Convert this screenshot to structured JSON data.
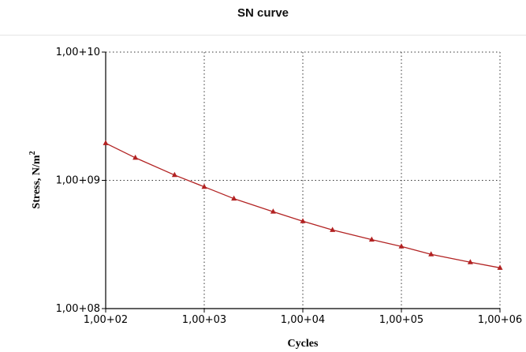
{
  "chart_data": {
    "type": "line",
    "title": "SN curve",
    "xlabel": "Cycles",
    "ylabel": "Stress, N/m",
    "ylabel_superscript": "2",
    "x_scale": "log",
    "y_scale": "log",
    "xlim": [
      100,
      1000000
    ],
    "ylim": [
      100000000,
      10000000000
    ],
    "x_ticks": [
      {
        "value": 100,
        "label": "1,00+02"
      },
      {
        "value": 1000,
        "label": "1,00+03"
      },
      {
        "value": 10000,
        "label": "1,00+04"
      },
      {
        "value": 100000,
        "label": "1,00+05"
      },
      {
        "value": 1000000,
        "label": "1,00+06"
      }
    ],
    "y_ticks": [
      {
        "value": 100000000,
        "label": "1,00+08"
      },
      {
        "value": 1000000000,
        "label": "1,00+09"
      },
      {
        "value": 10000000000,
        "label": "1,00+10"
      }
    ],
    "grid": true,
    "grid_style": "dotted",
    "marker": "triangle",
    "series_color": "#b22222",
    "series": [
      {
        "x": [
          100,
          200,
          500,
          1000,
          2000,
          5000,
          10000,
          20000,
          50000,
          100000,
          200000,
          500000,
          1000000
        ],
        "y": [
          1950000000,
          1500000000,
          1100000000,
          890000000,
          720000000,
          570000000,
          480000000,
          410000000,
          345000000,
          305000000,
          265000000,
          230000000,
          208000000
        ]
      }
    ]
  }
}
